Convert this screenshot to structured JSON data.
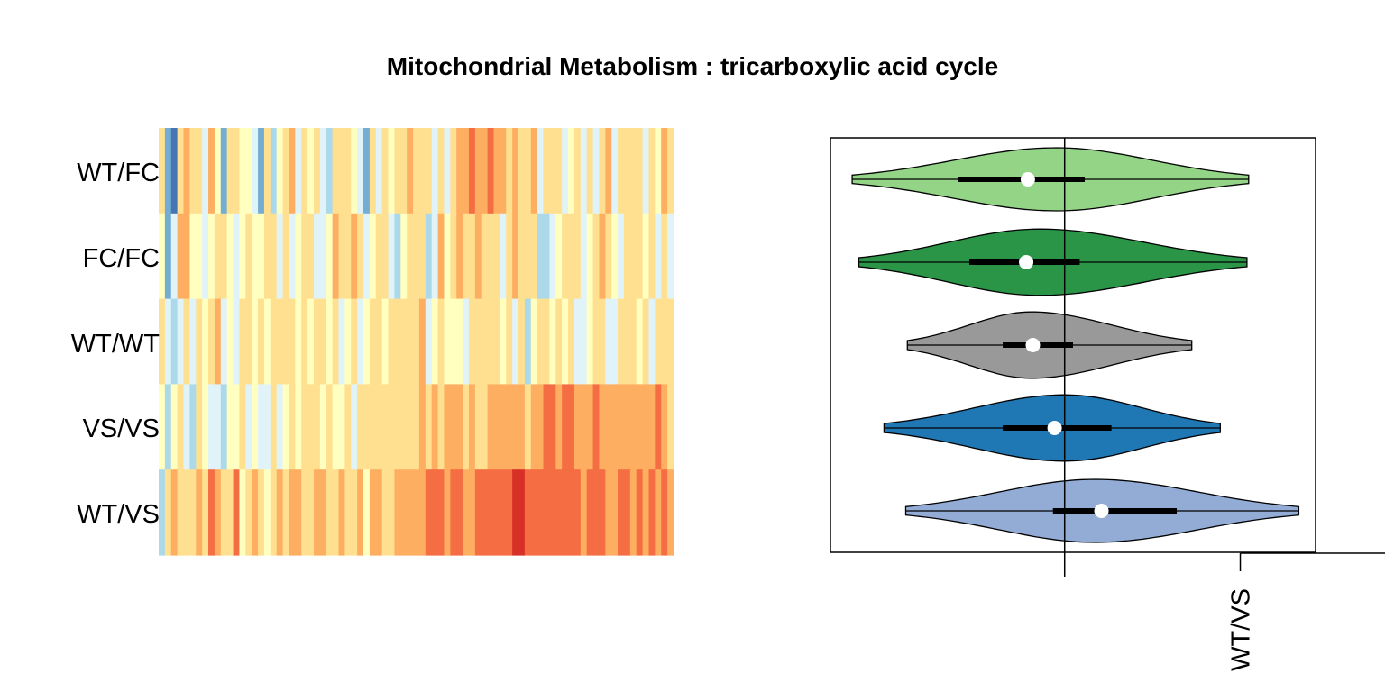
{
  "title": "Mitochondrial Metabolism : tricarboxylic acid cycle",
  "chart_data": [
    {
      "type": "heatmap",
      "rows": [
        "WT/FC",
        "FC/FC",
        "WT/WT",
        "VS/VS",
        "WT/VS"
      ],
      "palette": [
        "#d73027",
        "#f46d43",
        "#fdae61",
        "#fee090",
        "#ffffbf",
        "#e0f3f8",
        "#abd9e9",
        "#74add1",
        "#4575b4"
      ],
      "ncols": 83,
      "values": [
        [
          0.5,
          -2,
          -3,
          0.5,
          1.5,
          0.5,
          0.8,
          -1,
          1.2,
          0.3,
          -2,
          0.5,
          1,
          0,
          0.3,
          -0.5,
          -2,
          0.8,
          -1.3,
          0.2,
          1,
          1.2,
          -0.5,
          0.6,
          0.2,
          1,
          -1,
          -1.5,
          0.8,
          0.9,
          1.1,
          0.2,
          -0.5,
          -2.5,
          0.6,
          -1,
          0.6,
          0.3,
          0.8,
          1,
          1.5,
          1.1,
          0.9,
          0.7,
          -1,
          0.4,
          -0.7,
          0.5,
          1.4,
          1.6,
          2,
          1.4,
          1.8,
          2.1,
          1.3,
          1.8,
          1,
          1.4,
          0.6,
          0.8,
          1.8,
          -0.4,
          1.1,
          0.5,
          0.4,
          -0.6,
          0.1,
          0.8,
          -1,
          1.1,
          -0.5,
          0.5,
          1.2,
          -0.5,
          0.8,
          0.5,
          0.8,
          1.1,
          -0.8,
          0.5,
          -0.3,
          1.2,
          0.6
        ],
        [
          -0.3,
          -2,
          -1,
          1.5,
          1.3,
          -0.1,
          -0.3,
          -0.5,
          0,
          0.8,
          0.5,
          -0.2,
          -0.5,
          0.2,
          0.5,
          0.3,
          -0.3,
          0.4,
          1,
          -0.6,
          0.8,
          -0.5,
          0,
          0.5,
          0.5,
          -0.7,
          -0.4,
          0.3,
          1.2,
          0.7,
          0.8,
          1.5,
          0.5,
          -1,
          -0.3,
          0.6,
          0.9,
          -0.5,
          -1.7,
          0.2,
          0.4,
          0.5,
          0.8,
          -1.3,
          -0.5,
          1.2,
          0.3,
          0.8,
          1.2,
          0.9,
          1.1,
          1.2,
          1.1,
          0.6,
          0.9,
          -0.5,
          0.4,
          1.2,
          0.5,
          0.4,
          0.6,
          -1.4,
          -1.2,
          -0.5,
          0.1,
          1,
          0.5,
          0.6,
          -0.5,
          0.3,
          0.5,
          1.2,
          0.6,
          0.2,
          -1,
          1,
          0.7,
          0.5,
          0.3,
          1,
          -0.5,
          0.4,
          -0.4
        ],
        [
          0.4,
          -0.5,
          -1.2,
          -0.5,
          0.4,
          -1,
          0.4,
          0.2,
          0.4,
          1.4,
          -0.6,
          0.2,
          -0.8,
          0.6,
          0.4,
          0.3,
          0.5,
          0.3,
          0.4,
          0.5,
          0.7,
          0.7,
          0.3,
          0.6,
          -0.3,
          0.4,
          0.9,
          0.3,
          0.8,
          -1,
          0.2,
          0.5,
          -0.6,
          -0.3,
          0.4,
          0.5,
          0.2,
          0.5,
          0.6,
          1.1,
          0.4,
          0.5,
          1.2,
          -0.4,
          0.3,
          0.6,
          0.3,
          0.2,
          0.3,
          -0.5,
          0.4,
          0.9,
          0.5,
          0.4,
          0.6,
          0.3,
          0.5,
          -0.5,
          0.9,
          -1.2,
          -0.3,
          0.5,
          0.6,
          0.3,
          0.5,
          -0.3,
          0.6,
          -0.5,
          -1.1,
          0.3,
          0.4,
          0.5,
          -0.5,
          -0.4,
          0.5,
          0.6,
          0.5,
          -0.3,
          0.4,
          -0.7,
          0.5,
          0.4,
          0.6
        ],
        [
          0.3,
          -1.2,
          0.2,
          0.5,
          -0.8,
          -1.4,
          0.4,
          0.3,
          -1,
          -0.8,
          -1.5,
          0.2,
          0.3,
          0.4,
          -0.7,
          0.3,
          -0.5,
          -0.4,
          0.6,
          -0.8,
          0.3,
          0.5,
          0.1,
          0.6,
          0.4,
          0.9,
          -0.3,
          0.8,
          0.3,
          0.2,
          0.7,
          -0.4,
          0.6,
          0.5,
          0.8,
          0.6,
          0.9,
          0.9,
          1.1,
          0.5,
          0.6,
          1.1,
          1.2,
          0.9,
          1.6,
          1,
          1.4,
          1.3,
          1.2,
          0.9,
          1.2,
          1.1,
          1,
          1.3,
          1.6,
          1.3,
          1.3,
          1.2,
          1.4,
          1.1,
          1.8,
          1.6,
          2,
          1.9,
          1.7,
          1.9,
          1.9,
          1.6,
          1.4,
          1.3,
          2,
          1.8,
          1.4,
          1.5,
          1.8,
          1.6,
          1.6,
          1.6,
          1.5,
          1.2,
          1.9,
          1.2,
          1.1
        ],
        [
          -1.3,
          0.5,
          1.5,
          1.1,
          0.8,
          0.5,
          1.2,
          1.1,
          2.5,
          1.2,
          0.5,
          1,
          2,
          0.2,
          0.6,
          1.2,
          1,
          0.3,
          1.1,
          1.2,
          1,
          1.3,
          1.5,
          0.4,
          0.8,
          1.4,
          1.3,
          0.6,
          0.9,
          1.5,
          1.1,
          0.5,
          1.6,
          0.3,
          1.5,
          1.2,
          1,
          0.4,
          1.6,
          1.7,
          1.8,
          1.3,
          1.6,
          2,
          2.1,
          2.2,
          1.5,
          1.9,
          2,
          1.8,
          1.6,
          2.2,
          2.5,
          2.3,
          2.4,
          2,
          2.6,
          3,
          3.2,
          2.6,
          2.3,
          2.4,
          2.2,
          1.9,
          2,
          2.5,
          2.2,
          1.9,
          1.6,
          2,
          2.4,
          2.5,
          1.5,
          1.8,
          2,
          2.3,
          1.7,
          2.6,
          1.8,
          2.2,
          1.7,
          2.4,
          1.8
        ]
      ]
    },
    {
      "type": "violin",
      "groups": [
        "WT/FC",
        "FC/FC",
        "WT/WT",
        "VS/VS",
        "WT/VS"
      ],
      "colors": [
        "#93d486",
        "#2a9447",
        "#999999",
        "#1f78b4",
        "#92acd5"
      ],
      "xlim": [
        -1.4,
        1.5
      ],
      "reference_x": 0,
      "xtick_values": [
        1.05
      ],
      "xtick_labels": [
        "WT/VS"
      ],
      "stats": [
        {
          "min": -1.27,
          "q1": -0.64,
          "median": -0.22,
          "q3": 0.12,
          "max": 1.1,
          "peak_x": -0.05,
          "height": 0.38
        },
        {
          "min": -1.23,
          "q1": -0.57,
          "median": -0.23,
          "q3": 0.09,
          "max": 1.09,
          "peak_x": -0.15,
          "height": 0.4
        },
        {
          "min": -0.94,
          "q1": -0.37,
          "median": -0.19,
          "q3": 0.05,
          "max": 0.76,
          "peak_x": -0.2,
          "height": 0.4
        },
        {
          "min": -1.08,
          "q1": -0.37,
          "median": -0.06,
          "q3": 0.28,
          "max": 0.93,
          "peak_x": 0.0,
          "height": 0.4
        },
        {
          "min": -0.95,
          "q1": -0.07,
          "median": 0.22,
          "q3": 0.67,
          "max": 1.4,
          "peak_x": 0.18,
          "height": 0.38
        }
      ]
    }
  ]
}
